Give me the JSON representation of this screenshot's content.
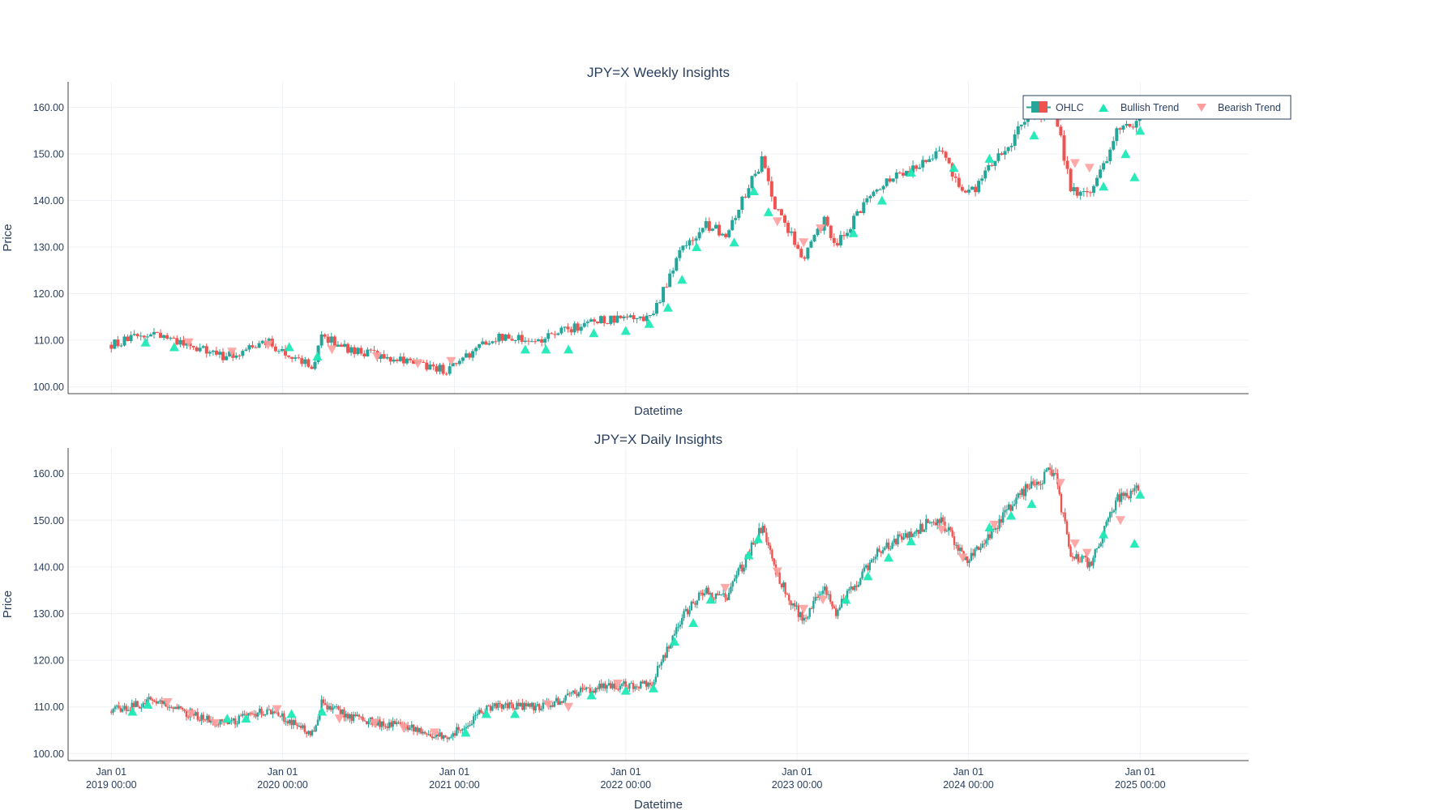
{
  "colors": {
    "increasing": "#26a69a",
    "decreasing": "#ef5350",
    "bullish": "#1de9b6",
    "bearish": "#ff9e9e",
    "text": "#2a3f5f",
    "grid": "#eef1f5",
    "axis": "#444444"
  },
  "legend": {
    "placement": "top-right",
    "items": [
      {
        "label": "OHLC",
        "symbol": "candlestick-icon"
      },
      {
        "label": "Bullish Trend",
        "symbol": "triangle-up-icon"
      },
      {
        "label": "Bearish Trend",
        "symbol": "triangle-down-icon"
      }
    ]
  },
  "chart_data": [
    {
      "type": "candlestick",
      "title": "JPY=X Weekly Insights",
      "xlabel": "Datetime",
      "ylabel": "Price",
      "ylim": [
        98.5,
        165.5
      ],
      "xlim": [
        "2018-10-01",
        "2025-08-20"
      ],
      "y_ticks": [
        "100.00",
        "110.00",
        "120.00",
        "130.00",
        "140.00",
        "150.00",
        "160.00"
      ],
      "x_ticks": [],
      "grid": true,
      "anchors": [
        [
          "2019-01-01",
          109
        ],
        [
          "2019-04-01",
          111.5
        ],
        [
          "2019-06-01",
          109
        ],
        [
          "2019-09-01",
          106.5
        ],
        [
          "2019-12-01",
          109.5
        ],
        [
          "2020-03-09",
          104
        ],
        [
          "2020-03-23",
          111
        ],
        [
          "2020-06-01",
          107.5
        ],
        [
          "2020-09-01",
          106
        ],
        [
          "2020-12-15",
          103.5
        ],
        [
          "2021-03-25",
          110.5
        ],
        [
          "2021-07-01",
          110
        ],
        [
          "2021-10-20",
          114
        ],
        [
          "2022-02-25",
          115
        ],
        [
          "2022-04-25",
          128.5
        ],
        [
          "2022-06-20",
          135
        ],
        [
          "2022-08-01",
          133
        ],
        [
          "2022-10-20",
          149
        ],
        [
          "2022-11-15",
          139
        ],
        [
          "2023-01-15",
          128
        ],
        [
          "2023-03-01",
          136
        ],
        [
          "2023-03-25",
          130.5
        ],
        [
          "2023-06-30",
          144
        ],
        [
          "2023-10-30",
          150.5
        ],
        [
          "2024-01-01",
          141
        ],
        [
          "2024-04-25",
          156
        ],
        [
          "2024-07-01",
          161
        ],
        [
          "2024-08-05",
          143
        ],
        [
          "2024-09-16",
          140.5
        ],
        [
          "2024-11-15",
          155
        ],
        [
          "2024-12-31",
          157
        ]
      ],
      "bullish_signals": [
        [
          "2019-03-15",
          109.5
        ],
        [
          "2019-05-15",
          108.5
        ],
        [
          "2020-01-15",
          108.5
        ],
        [
          "2020-03-15",
          106.5
        ],
        [
          "2021-06-01",
          108
        ],
        [
          "2021-07-15",
          108
        ],
        [
          "2021-09-01",
          108
        ],
        [
          "2021-10-25",
          111.5
        ],
        [
          "2022-01-01",
          112
        ],
        [
          "2022-02-20",
          113.5
        ],
        [
          "2022-04-01",
          117
        ],
        [
          "2022-05-01",
          123
        ],
        [
          "2022-06-01",
          130
        ],
        [
          "2022-08-20",
          131
        ],
        [
          "2022-10-01",
          142
        ],
        [
          "2022-11-01",
          137.5
        ],
        [
          "2023-05-01",
          133
        ],
        [
          "2023-07-01",
          140
        ],
        [
          "2023-09-01",
          146
        ],
        [
          "2023-12-01",
          147
        ],
        [
          "2024-02-15",
          149
        ],
        [
          "2024-05-20",
          154
        ],
        [
          "2024-10-15",
          143
        ],
        [
          "2024-12-01",
          150
        ],
        [
          "2024-12-20",
          145
        ],
        [
          "2025-01-01",
          155
        ]
      ],
      "bearish_signals": [
        [
          "2019-06-15",
          109.5
        ],
        [
          "2019-09-15",
          107.5
        ],
        [
          "2019-12-01",
          109
        ],
        [
          "2020-04-15",
          108
        ],
        [
          "2020-07-20",
          106.5
        ],
        [
          "2020-10-15",
          105
        ],
        [
          "2020-12-25",
          105.5
        ],
        [
          "2022-11-20",
          135.5
        ],
        [
          "2023-01-15",
          131
        ],
        [
          "2023-02-20",
          134
        ],
        [
          "2024-07-15",
          158
        ],
        [
          "2024-08-15",
          148
        ],
        [
          "2024-09-15",
          147
        ]
      ]
    },
    {
      "type": "candlestick",
      "title": "JPY=X Daily Insights",
      "xlabel": "Datetime",
      "ylabel": "Price",
      "ylim": [
        98.5,
        165.5
      ],
      "xlim": [
        "2018-10-01",
        "2025-08-20"
      ],
      "y_ticks": [
        "100.00",
        "110.00",
        "120.00",
        "130.00",
        "140.00",
        "150.00",
        "160.00"
      ],
      "x_ticks": [
        {
          "date": "2019-01-01",
          "line1": "Jan 01",
          "line2": "2019 00:00"
        },
        {
          "date": "2020-01-01",
          "line1": "Jan 01",
          "line2": "2020 00:00"
        },
        {
          "date": "2021-01-01",
          "line1": "Jan 01",
          "line2": "2021 00:00"
        },
        {
          "date": "2022-01-01",
          "line1": "Jan 01",
          "line2": "2022 00:00"
        },
        {
          "date": "2023-01-01",
          "line1": "Jan 01",
          "line2": "2023 00:00"
        },
        {
          "date": "2024-01-01",
          "line1": "Jan 01",
          "line2": "2024 00:00"
        },
        {
          "date": "2025-01-01",
          "line1": "Jan 01",
          "line2": "2025 00:00"
        }
      ],
      "grid": true,
      "anchors": [
        [
          "2019-01-01",
          109
        ],
        [
          "2019-04-01",
          111.5
        ],
        [
          "2019-06-01",
          109
        ],
        [
          "2019-09-01",
          106.5
        ],
        [
          "2019-12-01",
          109.5
        ],
        [
          "2020-03-09",
          104
        ],
        [
          "2020-03-23",
          111
        ],
        [
          "2020-06-01",
          107.5
        ],
        [
          "2020-09-01",
          106
        ],
        [
          "2020-12-15",
          103.5
        ],
        [
          "2021-03-25",
          110.5
        ],
        [
          "2021-07-01",
          110
        ],
        [
          "2021-10-20",
          114
        ],
        [
          "2022-02-25",
          115
        ],
        [
          "2022-04-25",
          128.5
        ],
        [
          "2022-06-20",
          135
        ],
        [
          "2022-08-01",
          133
        ],
        [
          "2022-10-20",
          149
        ],
        [
          "2022-11-15",
          139
        ],
        [
          "2023-01-15",
          128
        ],
        [
          "2023-03-01",
          136
        ],
        [
          "2023-03-25",
          130.5
        ],
        [
          "2023-06-30",
          144
        ],
        [
          "2023-10-30",
          150.5
        ],
        [
          "2024-01-01",
          141
        ],
        [
          "2024-04-25",
          156
        ],
        [
          "2024-07-01",
          161
        ],
        [
          "2024-08-05",
          143
        ],
        [
          "2024-09-16",
          140.5
        ],
        [
          "2024-11-15",
          155
        ],
        [
          "2024-12-31",
          157
        ]
      ],
      "bullish_signals": [
        [
          "2019-02-15",
          109
        ],
        [
          "2019-03-20",
          110.5
        ],
        [
          "2019-09-05",
          107.5
        ],
        [
          "2019-10-15",
          107.5
        ],
        [
          "2020-01-20",
          108.5
        ],
        [
          "2020-03-25",
          109
        ],
        [
          "2021-01-25",
          104.5
        ],
        [
          "2021-03-10",
          108.5
        ],
        [
          "2021-05-10",
          108.5
        ],
        [
          "2021-10-20",
          112.5
        ],
        [
          "2022-01-01",
          113.5
        ],
        [
          "2022-03-01",
          114
        ],
        [
          "2022-04-15",
          124
        ],
        [
          "2022-05-25",
          128
        ],
        [
          "2022-07-01",
          133
        ],
        [
          "2022-09-20",
          142.5
        ],
        [
          "2022-10-10",
          146
        ],
        [
          "2023-04-15",
          133
        ],
        [
          "2023-06-01",
          138
        ],
        [
          "2023-07-15",
          142
        ],
        [
          "2023-09-01",
          145.5
        ],
        [
          "2024-02-15",
          148.5
        ],
        [
          "2024-04-01",
          151
        ],
        [
          "2024-05-15",
          153.5
        ],
        [
          "2024-10-15",
          147
        ],
        [
          "2024-12-20",
          145
        ],
        [
          "2025-01-01",
          155.5
        ]
      ],
      "bearish_signals": [
        [
          "2019-05-01",
          111
        ],
        [
          "2019-06-20",
          108.5
        ],
        [
          "2019-08-10",
          106.5
        ],
        [
          "2019-12-20",
          109.5
        ],
        [
          "2020-05-01",
          107.5
        ],
        [
          "2020-07-15",
          106.5
        ],
        [
          "2020-09-15",
          105.5
        ],
        [
          "2020-11-20",
          104.5
        ],
        [
          "2021-07-20",
          110.5
        ],
        [
          "2021-09-01",
          110
        ],
        [
          "2021-12-15",
          115
        ],
        [
          "2022-08-01",
          135.5
        ],
        [
          "2022-11-20",
          139
        ],
        [
          "2023-01-15",
          131
        ],
        [
          "2023-02-25",
          133
        ],
        [
          "2023-11-05",
          148
        ],
        [
          "2023-12-20",
          142
        ],
        [
          "2024-02-25",
          149
        ],
        [
          "2024-07-15",
          158
        ],
        [
          "2024-08-15",
          145
        ],
        [
          "2024-09-10",
          143
        ],
        [
          "2024-11-20",
          150
        ]
      ]
    }
  ]
}
